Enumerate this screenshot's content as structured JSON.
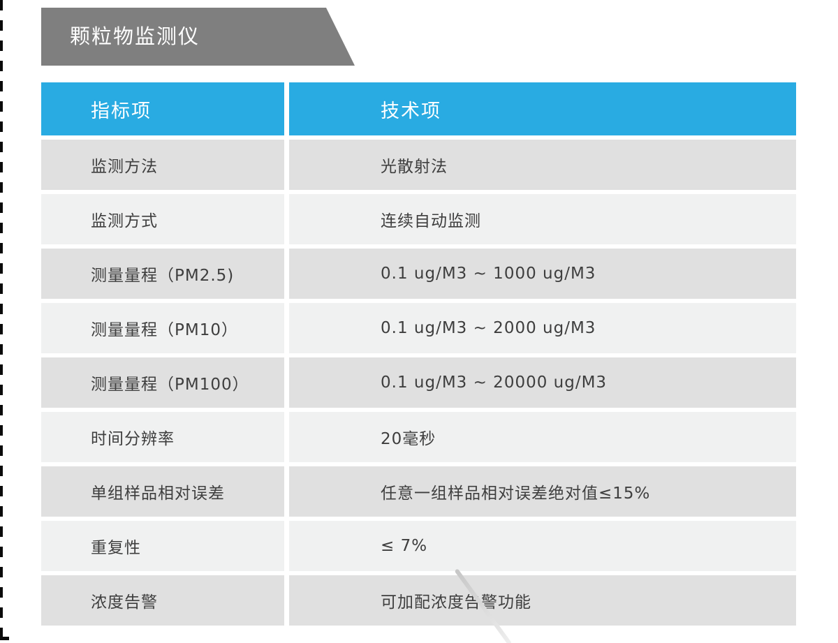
{
  "page": {
    "title": "颗粒物监测仪"
  },
  "table": {
    "header": {
      "col1": "指标项",
      "col2": "技术项"
    },
    "rows": [
      {
        "label": "监测方法",
        "value": "光散射法"
      },
      {
        "label": "监测方式",
        "value": "连续自动监测"
      },
      {
        "label": "测量量程（PM2.5)",
        "value": "0.1 ug/M3 ~ 1000 ug/M3"
      },
      {
        "label": "测量量程（PM10）",
        "value": "0.1 ug/M3 ~ 2000 ug/M3"
      },
      {
        "label": "测量量程（PM100）",
        "value": "0.1 ug/M3 ~ 20000 ug/M3"
      },
      {
        "label": "时间分辨率",
        "value": "20毫秒"
      },
      {
        "label": "单组样品相对误差",
        "value": "任意一组样品相对误差绝对值≤15%"
      },
      {
        "label": "重复性",
        "value": "≤ 7%"
      },
      {
        "label": "浓度告警",
        "value": "可加配浓度告警功能"
      }
    ]
  },
  "colors": {
    "accent_blue": "#29ABE2",
    "banner_gray": "#7F7F7F",
    "row_dark": "#E0E0E0",
    "row_light": "#F0F1F1",
    "text_dark": "#3E3E3E",
    "frame_dash": "#0A0A0A"
  }
}
